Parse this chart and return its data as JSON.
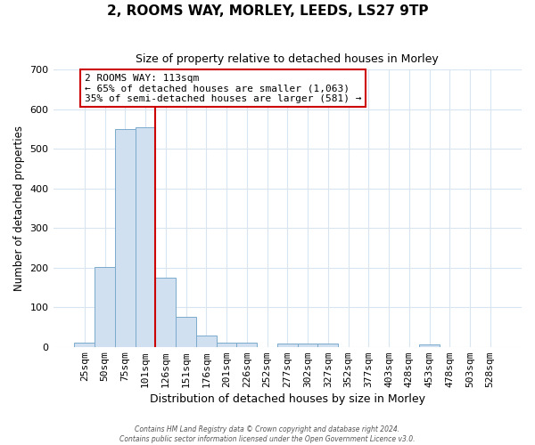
{
  "title": "2, ROOMS WAY, MORLEY, LEEDS, LS27 9TP",
  "subtitle": "Size of property relative to detached houses in Morley",
  "xlabel": "Distribution of detached houses by size in Morley",
  "ylabel": "Number of detached properties",
  "bar_color": "#d0e0f0",
  "bar_edge_color": "#7aaacc",
  "categories": [
    "25sqm",
    "50sqm",
    "75sqm",
    "101sqm",
    "126sqm",
    "151sqm",
    "176sqm",
    "201sqm",
    "226sqm",
    "252sqm",
    "277sqm",
    "302sqm",
    "327sqm",
    "352sqm",
    "377sqm",
    "403sqm",
    "428sqm",
    "453sqm",
    "478sqm",
    "503sqm",
    "528sqm"
  ],
  "values": [
    10,
    201,
    550,
    555,
    175,
    75,
    28,
    10,
    10,
    0,
    8,
    8,
    8,
    0,
    0,
    0,
    0,
    5,
    0,
    0,
    0
  ],
  "ylim": [
    0,
    700
  ],
  "yticks": [
    0,
    100,
    200,
    300,
    400,
    500,
    600,
    700
  ],
  "red_line_x": 3.5,
  "annotation_title": "2 ROOMS WAY: 113sqm",
  "annotation_line1": "← 65% of detached houses are smaller (1,063)",
  "annotation_line2": "35% of semi-detached houses are larger (581) →",
  "annotation_box_color": "#ffffff",
  "annotation_box_edge": "#cc0000",
  "red_line_color": "#cc0000",
  "footer_line1": "Contains HM Land Registry data © Crown copyright and database right 2024.",
  "footer_line2": "Contains public sector information licensed under the Open Government Licence v3.0.",
  "background_color": "#ffffff",
  "grid_color": "#d8e4f0",
  "title_fontsize": 11,
  "subtitle_fontsize": 9
}
